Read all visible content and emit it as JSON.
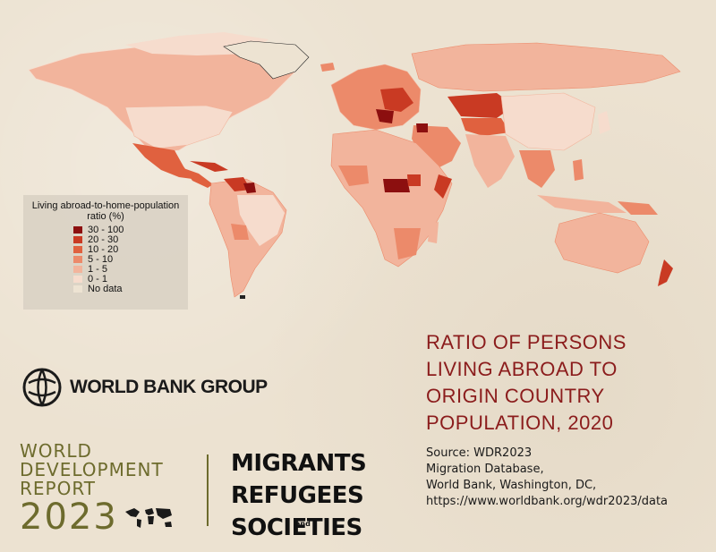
{
  "legend": {
    "title_line1": "Living abroad-to-home-population",
    "title_line2": "ratio (%)",
    "items": [
      {
        "label": "30 - 100",
        "color": "#8c0f0f"
      },
      {
        "label": "20 - 30",
        "color": "#c93a23"
      },
      {
        "label": "10 - 20",
        "color": "#e0613f"
      },
      {
        "label": "5 - 10",
        "color": "#ec8a6a"
      },
      {
        "label": "1 - 5",
        "color": "#f2b49c"
      },
      {
        "label": "0 - 1",
        "color": "#f6dccd"
      },
      {
        "label": "No data",
        "color": "#ede3d2"
      }
    ]
  },
  "branding": {
    "org": "WORLD BANK GROUP",
    "report_line1": "WORLD",
    "report_line2": "DEVELOPMENT",
    "report_line3": "REPORT",
    "report_year": "2023",
    "theme_line1": "MIGRANTS",
    "theme_line2": "REFUGEES",
    "theme_and": "and",
    "theme_line3": "SOCIETIES"
  },
  "title": {
    "line1": "RATIO OF PERSONS",
    "line2": "LIVING ABROAD TO",
    "line3": "ORIGIN COUNTRY",
    "line4": "POPULATION, 2020"
  },
  "source": {
    "line1": "Source: WDR2023",
    "line2": "Migration Database,",
    "line3": "World Bank, Washington, DC,",
    "line4": "https://www.worldbank.org/wdr2023/data"
  },
  "colors": {
    "accent_title": "#8b1c1c",
    "report_olive": "#6d6b2d"
  }
}
